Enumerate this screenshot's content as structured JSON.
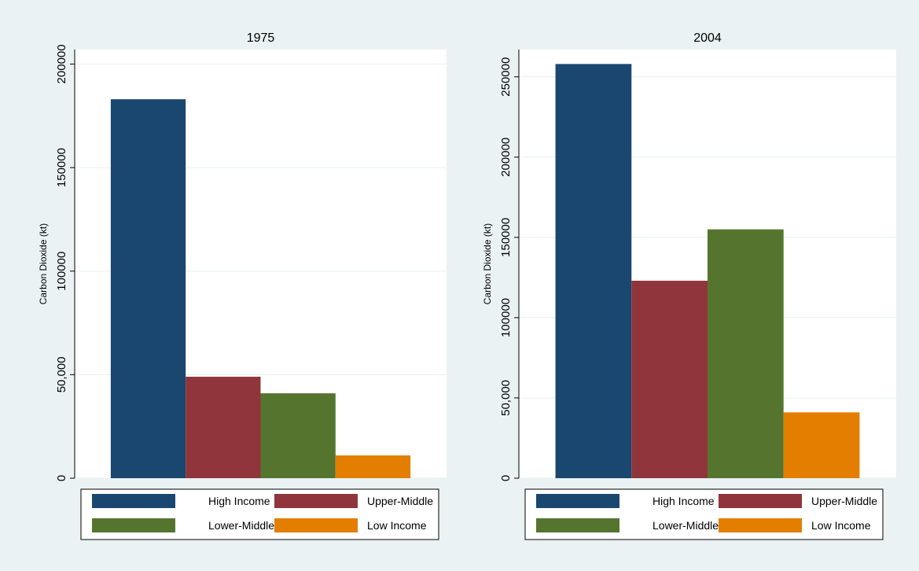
{
  "chart_data": [
    {
      "type": "bar",
      "title": "1975",
      "y_label": "Carbon Dioxide (kt)",
      "series": [
        {
          "name": "High Income",
          "color": "#1a476f",
          "values": [
            183000
          ]
        },
        {
          "name": "Upper-Middle",
          "color": "#90353b",
          "values": [
            49000
          ]
        },
        {
          "name": "Lower-Middle",
          "color": "#55752f",
          "values": [
            41000
          ]
        },
        {
          "name": "Low Income",
          "color": "#e37e00",
          "values": [
            11000
          ]
        }
      ],
      "ylim": [
        0,
        207000
      ],
      "yticks": [
        0,
        {
          "value": 50000,
          "label": "50,000"
        },
        100000,
        150000,
        200000
      ],
      "grid": true
    },
    {
      "type": "bar",
      "title": "2004",
      "y_label": "Carbon Dioxide (kt)",
      "series": [
        {
          "name": "High Income",
          "color": "#1a476f",
          "values": [
            258000
          ]
        },
        {
          "name": "Upper-Middle",
          "color": "#90353b",
          "values": [
            123000
          ]
        },
        {
          "name": "Lower-Middle",
          "color": "#55752f",
          "values": [
            155000
          ]
        },
        {
          "name": "Low Income",
          "color": "#e37e00",
          "values": [
            41000
          ]
        }
      ],
      "ylim": [
        0,
        267000
      ],
      "yticks": [
        0,
        {
          "value": 50000,
          "label": "50,000"
        },
        100000,
        150000,
        200000,
        250000
      ],
      "grid": true
    }
  ]
}
